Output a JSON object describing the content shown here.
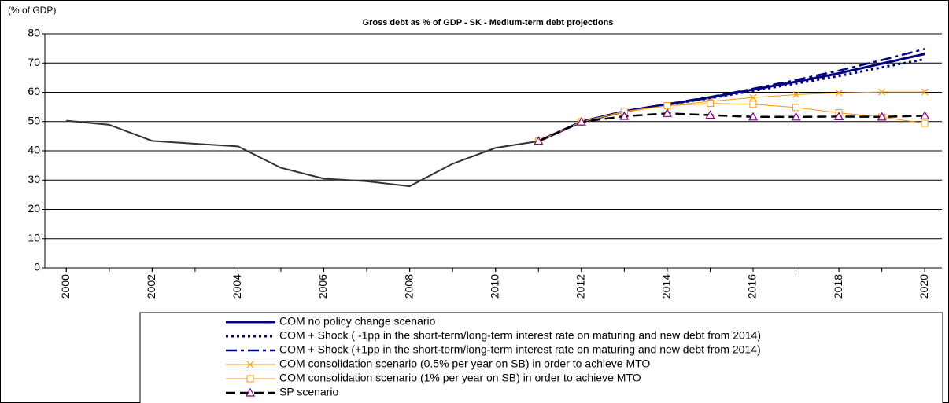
{
  "chart_data": {
    "type": "line",
    "title": "Gross debt as % of GDP - SK - Medium-term debt projections",
    "y_label": "(% of GDP)",
    "x": [
      2000,
      2001,
      2002,
      2003,
      2004,
      2005,
      2006,
      2007,
      2008,
      2009,
      2010,
      2011,
      2012,
      2013,
      2014,
      2015,
      2016,
      2017,
      2018,
      2019,
      2020
    ],
    "xlim": [
      1999.5,
      2020.4
    ],
    "xticks": [
      2000,
      2002,
      2004,
      2006,
      2008,
      2010,
      2012,
      2014,
      2016,
      2018,
      2020
    ],
    "ylim": [
      0,
      80
    ],
    "yticks": [
      0,
      10,
      20,
      30,
      40,
      50,
      60,
      70,
      80
    ],
    "grid": true,
    "legend": "bottom",
    "series": [
      {
        "color": "#333333",
        "style": "solid",
        "width": 2,
        "values": [
          50.3,
          48.9,
          43.4,
          42.4,
          41.5,
          34.2,
          30.5,
          29.6,
          27.9,
          35.6,
          41.0,
          43.3,
          null,
          null,
          null,
          null,
          null,
          null,
          null,
          null,
          null
        ]
      },
      {
        "name": "COM no policy change scenario",
        "color": "#000080",
        "style": "solid",
        "width": 3,
        "values": [
          null,
          null,
          null,
          null,
          null,
          null,
          null,
          null,
          null,
          null,
          null,
          43.3,
          49.9,
          53.5,
          55.9,
          58.2,
          60.9,
          63.6,
          66.5,
          69.8,
          73.1
        ]
      },
      {
        "name": "COM + Shock ( -1pp in the short-term/long-term interest rate on maturing and new debt from 2014)",
        "color": "#000080",
        "style": "dotted",
        "width": 3,
        "values": [
          null,
          null,
          null,
          null,
          null,
          null,
          null,
          null,
          null,
          null,
          null,
          43.3,
          49.9,
          53.5,
          55.8,
          58.0,
          60.5,
          63.0,
          65.6,
          68.5,
          71.3
        ]
      },
      {
        "name": "COM + Shock (+1pp in the short-term/long-term interest rate on maturing and new debt from 2014)",
        "color": "#000080",
        "style": "dashdot",
        "width": 2.5,
        "values": [
          null,
          null,
          null,
          null,
          null,
          null,
          null,
          null,
          null,
          null,
          null,
          43.3,
          49.9,
          53.5,
          56.0,
          58.4,
          61.2,
          64.2,
          67.4,
          71.0,
          74.8
        ]
      },
      {
        "name": "COM consolidation scenario (0.5% per year on SB) in order to achieve MTO",
        "color": "#FF9900",
        "style": "solid",
        "width": 1,
        "marker": "x",
        "values": [
          null,
          null,
          null,
          null,
          null,
          null,
          null,
          null,
          null,
          null,
          null,
          43.3,
          49.9,
          53.3,
          55.4,
          56.9,
          58.2,
          59.2,
          59.8,
          60.1,
          60.1
        ]
      },
      {
        "name": "COM consolidation scenario (1% per year on SB) in order to achieve MTO",
        "color": "#FF9900",
        "style": "solid",
        "width": 1,
        "marker": "square",
        "values": [
          null,
          null,
          null,
          null,
          null,
          null,
          null,
          null,
          null,
          null,
          null,
          43.3,
          49.9,
          53.5,
          55.4,
          56.2,
          55.9,
          54.8,
          53.0,
          51.5,
          49.4
        ]
      },
      {
        "name": "SP scenario",
        "color": "#000000",
        "marker_color": "#800080",
        "style": "dashed",
        "width": 2.5,
        "marker": "triangle",
        "values": [
          null,
          null,
          null,
          null,
          null,
          null,
          null,
          null,
          null,
          null,
          null,
          43.3,
          49.9,
          51.8,
          52.8,
          52.2,
          51.6,
          51.6,
          51.7,
          51.6,
          52.0
        ]
      }
    ]
  }
}
